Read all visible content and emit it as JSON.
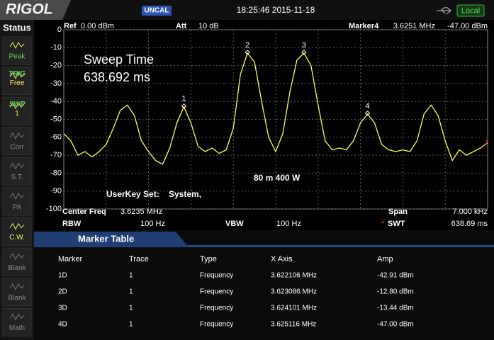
{
  "header": {
    "logo": "RIGOL",
    "uncal": "UNCAL",
    "datetime": "18:25:46 2015-11-18",
    "mode": "Local"
  },
  "sidebar": {
    "title": "Status",
    "buttons": [
      [
        "Peak"
      ],
      [
        "TRIG",
        "Free"
      ],
      [
        "SWP",
        "1"
      ],
      [
        "Corr"
      ],
      [
        "S.T."
      ],
      [
        "PA"
      ],
      [
        "C.W."
      ],
      [
        "Blank"
      ],
      [
        "Blank"
      ],
      [
        "Math"
      ]
    ]
  },
  "plot": {
    "ref_label": "Ref",
    "ref_value": "0.00 dBm",
    "att_label": "Att",
    "att_value": "10 dB",
    "marker_label": "Marker4",
    "marker_freq": "3.6251 MHz",
    "marker_amp": "-47.00 dBm",
    "annotations": [
      "Sweep Time",
      "638.692 ms",
      "80 m 400 W",
      "UserKey Set:",
      "System,"
    ],
    "ylim": [
      -100,
      0
    ],
    "yticks": [
      0,
      -10,
      -20,
      -30,
      -40,
      -50,
      -60,
      -70,
      -80,
      -90,
      -100
    ],
    "trace_color": "#ffff4a",
    "trace": [
      -58,
      -62,
      -70,
      -68,
      -71,
      -68,
      -64,
      -55,
      -45,
      -42,
      -48,
      -62,
      -68,
      -73,
      -75,
      -66,
      -52,
      -43,
      -52,
      -65,
      -68,
      -66,
      -69,
      -67,
      -55,
      -25,
      -13,
      -18,
      -40,
      -60,
      -68,
      -58,
      -35,
      -17,
      -13,
      -20,
      -42,
      -62,
      -67,
      -66,
      -67,
      -62,
      -52,
      -47,
      -52,
      -64,
      -67,
      -68,
      -67,
      -68,
      -62,
      -47,
      -42,
      -48,
      -62,
      -73,
      -67,
      -70,
      -68,
      -66,
      -63
    ],
    "marker_labels": [
      "1",
      "2",
      "3",
      "4"
    ]
  },
  "settings": {
    "center_label": "Center Freq",
    "center": "3.6235 MHz",
    "span_label": "Span",
    "span": "7.000 kHz",
    "rbw_label": "RBW",
    "rbw": "100 Hz",
    "vbw_label": "VBW",
    "vbw": "100 Hz",
    "swt_flag": "*",
    "swt_label": "SWT",
    "swt": "638.69 ms"
  },
  "marker_table": {
    "title": "Marker Table",
    "columns": [
      "Marker",
      "Trace",
      "Type",
      "X Axis",
      "Amp"
    ],
    "rows": [
      [
        "1D",
        "1",
        "Frequency",
        "3.622106 MHz",
        "-42.91 dBm"
      ],
      [
        "2D",
        "1",
        "Frequency",
        "3.623086 MHz",
        "-12.80 dBm"
      ],
      [
        "3D",
        "1",
        "Frequency",
        "3.624101 MHz",
        "-13.44 dBm"
      ],
      [
        "4D",
        "1",
        "Frequency",
        "3.625116 MHz",
        "-47.00 dBm"
      ]
    ]
  }
}
